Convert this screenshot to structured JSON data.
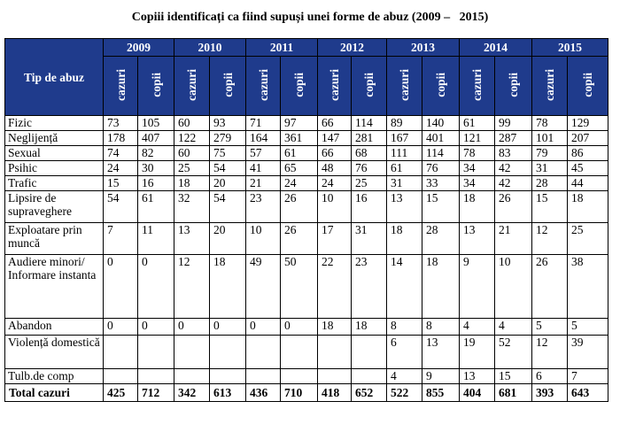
{
  "title": "Copiii identificați ca fiind supuși unei forme de abuz (2009 –   2015)",
  "type_header": "Tip de abuz",
  "years": [
    "2009",
    "2010",
    "2011",
    "2012",
    "2013",
    "2014",
    "2015"
  ],
  "sub_labels": [
    "cazuri",
    "copii"
  ],
  "rows": [
    {
      "label": "Fizic",
      "h": 17,
      "values": [
        "73",
        "105",
        "60",
        "93",
        "71",
        "97",
        "66",
        "114",
        "89",
        "140",
        "61",
        "99",
        "78",
        "129"
      ]
    },
    {
      "label": "Neglijență",
      "h": 17,
      "values": [
        "178",
        "407",
        "122",
        "279",
        "164",
        "361",
        "147",
        "281",
        "167",
        "401",
        "121",
        "287",
        "101",
        "207"
      ]
    },
    {
      "label": "Sexual",
      "h": 17,
      "values": [
        "74",
        "82",
        "60",
        "75",
        "57",
        "61",
        "66",
        "68",
        "111",
        "114",
        "78",
        "83",
        "79",
        "86"
      ]
    },
    {
      "label": "Psihic",
      "h": 17,
      "values": [
        "24",
        "30",
        "25",
        "54",
        "41",
        "65",
        "48",
        "76",
        "61",
        "76",
        "34",
        "42",
        "31",
        "45"
      ]
    },
    {
      "label": "Trafic",
      "h": 17,
      "values": [
        "15",
        "16",
        "18",
        "20",
        "21",
        "24",
        "24",
        "25",
        "31",
        "33",
        "34",
        "42",
        "28",
        "44"
      ]
    },
    {
      "label": "Lipsire de supraveghere",
      "h": 36,
      "values": [
        "54",
        "61",
        "32",
        "54",
        "23",
        "26",
        "10",
        "16",
        "13",
        "15",
        "18",
        "26",
        "15",
        "18"
      ]
    },
    {
      "label": "Exploatare prin muncă",
      "h": 36,
      "values": [
        "7",
        "11",
        "13",
        "20",
        "10",
        "26",
        "17",
        "31",
        "18",
        "28",
        "13",
        "21",
        "12",
        "25"
      ]
    },
    {
      "label": "Audiere minori/ Informare instanta",
      "h": 72,
      "values": [
        "0",
        "0",
        "12",
        "18",
        "49",
        "50",
        "22",
        "23",
        "14",
        "18",
        "9",
        "10",
        "26",
        "38"
      ]
    },
    {
      "label": "Abandon",
      "h": 19,
      "values": [
        "0",
        "0",
        "0",
        "0",
        "0",
        "0",
        "18",
        "18",
        "8",
        "8",
        "4",
        "4",
        "5",
        "5"
      ]
    },
    {
      "label": "Violență domestică",
      "h": 38,
      "values": [
        "",
        "",
        "",
        "",
        "",
        "",
        "",
        "",
        "6",
        "13",
        "19",
        "52",
        "12",
        "39"
      ]
    },
    {
      "label": "Tulb.de comp",
      "h": 17,
      "values": [
        "",
        "",
        "",
        "",
        "",
        "",
        "",
        "",
        "4",
        "9",
        "13",
        "15",
        "6",
        "7"
      ]
    }
  ],
  "total": {
    "label": "Total cazuri",
    "values": [
      "425",
      "712",
      "342",
      "613",
      "436",
      "710",
      "418",
      "652",
      "522",
      "855",
      "404",
      "681",
      "393",
      "643"
    ]
  }
}
